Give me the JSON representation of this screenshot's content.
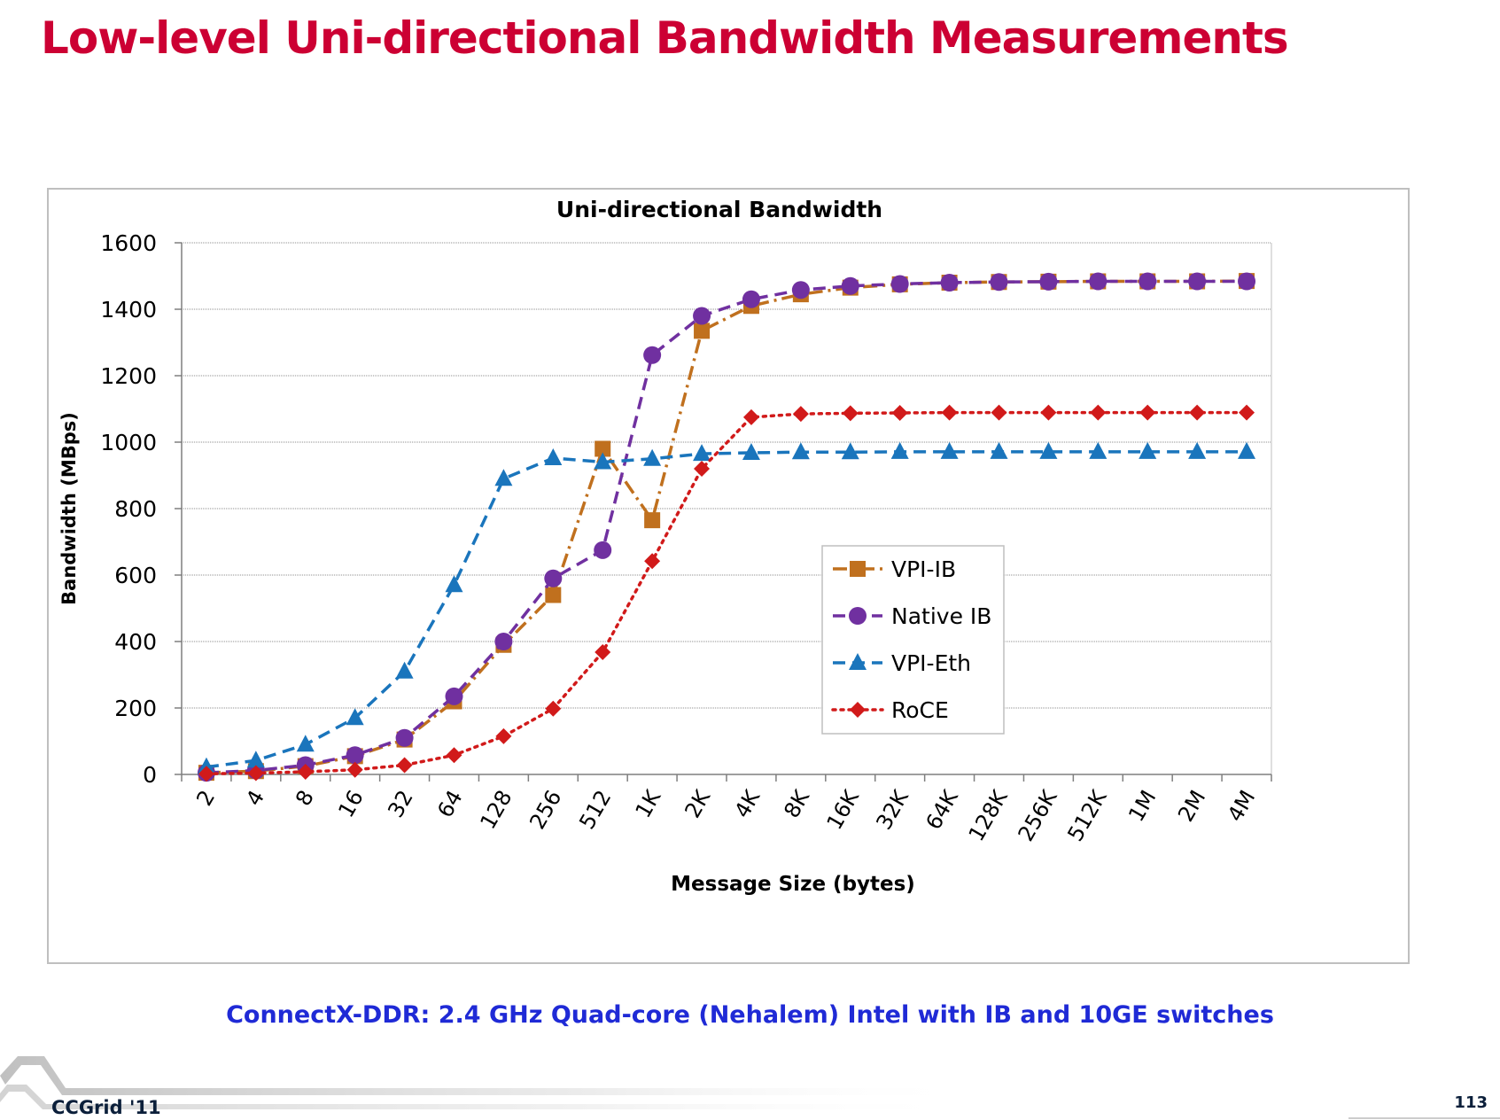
{
  "slide": {
    "title": "Low-level Uni-directional Bandwidth Measurements",
    "caption": "ConnectX-DDR: 2.4 GHz Quad-core (Nehalem) Intel with IB and 10GE switches",
    "footer": "CCGrid '11",
    "page_number": "113"
  },
  "chart_data": {
    "type": "line",
    "title": "Uni-directional Bandwidth",
    "xlabel": "Message Size (bytes)",
    "ylabel": "Bandwidth (MBps)",
    "ylim": [
      0,
      1600
    ],
    "yticks": [
      0,
      200,
      400,
      600,
      800,
      1000,
      1200,
      1400,
      1600
    ],
    "grid": true,
    "legend_position": "right",
    "categories": [
      "2",
      "4",
      "8",
      "16",
      "32",
      "64",
      "128",
      "256",
      "512",
      "1K",
      "2K",
      "4K",
      "8K",
      "16K",
      "32K",
      "64K",
      "128K",
      "256K",
      "512K",
      "1M",
      "2M",
      "4M"
    ],
    "series": [
      {
        "name": "VPI-IB",
        "color": "#c0701e",
        "marker": "square",
        "dash": "dashdot",
        "values": [
          5,
          10,
          25,
          55,
          105,
          220,
          390,
          540,
          980,
          765,
          1335,
          1410,
          1445,
          1465,
          1475,
          1480,
          1482,
          1483,
          1484,
          1484,
          1484,
          1485
        ]
      },
      {
        "name": "Native IB",
        "color": "#7030a0",
        "marker": "circle",
        "dash": "dash",
        "values": [
          5,
          12,
          28,
          58,
          110,
          235,
          400,
          590,
          675,
          1262,
          1380,
          1430,
          1458,
          1470,
          1476,
          1480,
          1482,
          1483,
          1484,
          1484,
          1484,
          1484
        ]
      },
      {
        "name": "VPI-Eth",
        "color": "#1a75bc",
        "marker": "triangle",
        "dash": "dash",
        "values": [
          22,
          42,
          90,
          170,
          310,
          570,
          890,
          952,
          940,
          950,
          965,
          968,
          970,
          970,
          971,
          971,
          971,
          971,
          971,
          971,
          971,
          971
        ]
      },
      {
        "name": "RoCE",
        "color": "#d11a1a",
        "marker": "diamond",
        "dash": "dot",
        "values": [
          2,
          4,
          8,
          14,
          28,
          58,
          115,
          198,
          368,
          642,
          920,
          1075,
          1085,
          1087,
          1088,
          1089,
          1089,
          1089,
          1089,
          1089,
          1089,
          1089
        ]
      }
    ]
  }
}
